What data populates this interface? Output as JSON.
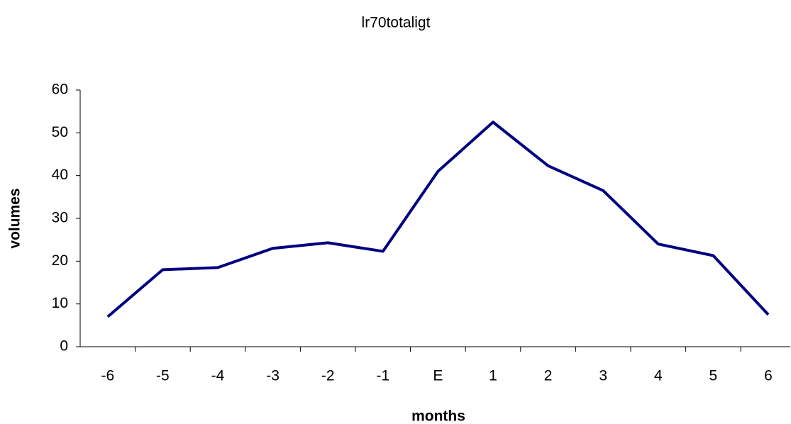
{
  "chart_data": {
    "type": "line",
    "title": "lr70totaligt",
    "x_label": "months",
    "y_label": "volumes",
    "categories": [
      "-6",
      "-5",
      "-4",
      "-3",
      "-2",
      "-1",
      "E",
      "1",
      "2",
      "3",
      "4",
      "5",
      "6"
    ],
    "series": [
      {
        "color": "#000080",
        "values": [
          7,
          18,
          18.5,
          23,
          24.3,
          22.3,
          41,
          52.5,
          42.3,
          36.5,
          24,
          21.3,
          7.5
        ]
      }
    ],
    "ylim": [
      0,
      60
    ],
    "yticks": [
      0,
      10,
      20,
      30,
      40,
      50,
      60
    ],
    "grid": false
  }
}
